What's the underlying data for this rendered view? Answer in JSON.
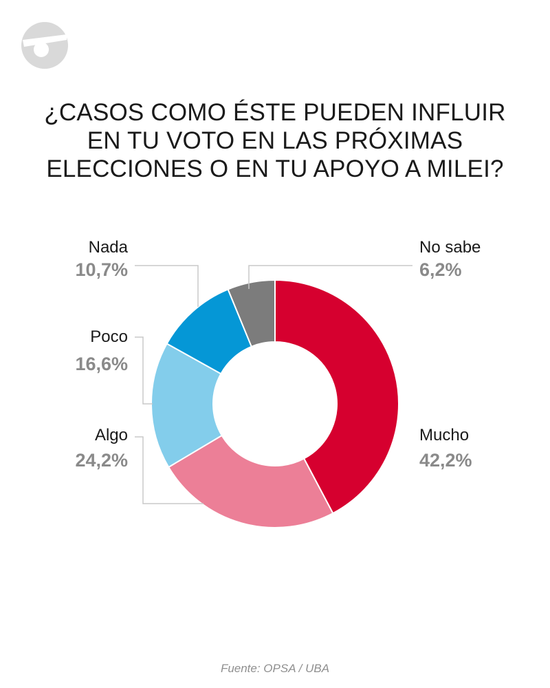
{
  "title_lines": [
    "¿CASOS COMO ÉSTE PUEDEN INFLUIR",
    "EN TU VOTO EN LAS PRÓXIMAS",
    "ELECCIONES O EN TU APOYO A MILEI?"
  ],
  "source": "Fuente: OPSA / UBA",
  "colors": {
    "value_default": "#8a8a8a",
    "value_highlight": "#d6002f",
    "connector": "#c8c8c8",
    "logo": "#d9d9d9"
  },
  "chart_data": {
    "type": "pie",
    "donut": true,
    "title": "¿CASOS COMO ÉSTE PUEDEN INFLUIR EN TU VOTO EN LAS PRÓXIMAS ELECCIONES O EN TU APOYO A MILEI?",
    "categories": [
      "Mucho",
      "Algo",
      "Poco",
      "Nada",
      "No sabe"
    ],
    "values": [
      42.2,
      24.2,
      16.6,
      10.7,
      6.2
    ],
    "value_labels": [
      "42,2%",
      "24,2%",
      "16,6%",
      "10,7%",
      "6,2%"
    ],
    "colors": [
      "#d6002f",
      "#ec7f97",
      "#83cdeb",
      "#0597d6",
      "#7c7c7c"
    ],
    "highlight": "Mucho"
  }
}
